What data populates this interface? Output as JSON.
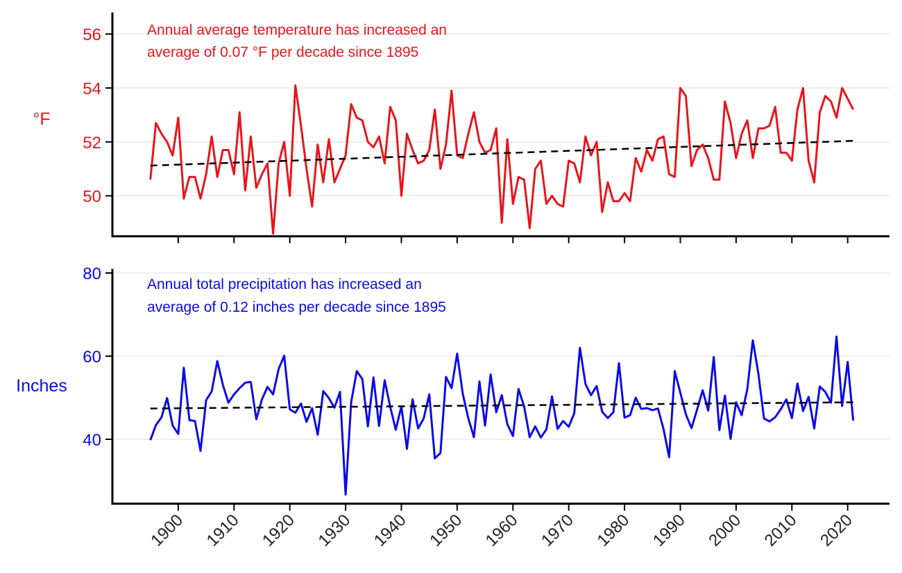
{
  "chart_data": [
    {
      "type": "line",
      "name": "temperature-panel",
      "ylabel": "°F",
      "annotation": [
        "Annual average temperature has increased an",
        "average of 0.07 °F per decade since 1895"
      ],
      "color": "#e8141b",
      "ylim": [
        48.5,
        56.8
      ],
      "yticks": [
        50,
        52,
        54,
        56
      ],
      "grid": true,
      "x": [
        1895,
        1896,
        1897,
        1898,
        1899,
        1900,
        1901,
        1902,
        1903,
        1904,
        1905,
        1906,
        1907,
        1908,
        1909,
        1910,
        1911,
        1912,
        1913,
        1914,
        1915,
        1916,
        1917,
        1918,
        1919,
        1920,
        1921,
        1922,
        1923,
        1924,
        1925,
        1926,
        1927,
        1928,
        1929,
        1930,
        1931,
        1932,
        1933,
        1934,
        1935,
        1936,
        1937,
        1938,
        1939,
        1940,
        1941,
        1942,
        1943,
        1944,
        1945,
        1946,
        1947,
        1948,
        1949,
        1950,
        1951,
        1952,
        1953,
        1954,
        1955,
        1956,
        1957,
        1958,
        1959,
        1960,
        1961,
        1962,
        1963,
        1964,
        1965,
        1966,
        1967,
        1968,
        1969,
        1970,
        1971,
        1972,
        1973,
        1974,
        1975,
        1976,
        1977,
        1978,
        1979,
        1980,
        1981,
        1982,
        1983,
        1984,
        1985,
        1986,
        1987,
        1988,
        1989,
        1990,
        1991,
        1992,
        1993,
        1994,
        1995,
        1996,
        1997,
        1998,
        1999,
        2000,
        2001,
        2002,
        2003,
        2004,
        2005,
        2006,
        2007,
        2008,
        2009,
        2010,
        2011,
        2012,
        2013,
        2014,
        2015,
        2016,
        2017,
        2018,
        2019,
        2020,
        2021
      ],
      "values": [
        50.6,
        52.7,
        52.3,
        52.0,
        51.5,
        52.9,
        49.9,
        50.7,
        50.7,
        49.9,
        50.8,
        52.2,
        50.7,
        51.7,
        51.7,
        50.8,
        53.1,
        50.2,
        52.2,
        50.3,
        50.8,
        51.2,
        48.6,
        51.2,
        52.0,
        50.0,
        54.1,
        52.6,
        51.0,
        49.6,
        51.9,
        50.5,
        52.1,
        50.5,
        51.0,
        51.5,
        53.4,
        52.9,
        52.8,
        52.0,
        51.8,
        52.2,
        51.2,
        53.3,
        52.8,
        50.0,
        52.3,
        51.7,
        51.2,
        51.3,
        51.7,
        53.2,
        51.0,
        51.9,
        53.9,
        51.5,
        51.4,
        52.3,
        53.1,
        52.0,
        51.6,
        51.7,
        52.5,
        49.0,
        52.1,
        49.7,
        50.7,
        50.6,
        48.8,
        51.0,
        51.3,
        49.7,
        50.0,
        49.7,
        49.6,
        51.3,
        51.2,
        50.5,
        52.2,
        51.5,
        52.0,
        49.4,
        50.5,
        49.8,
        49.8,
        50.1,
        49.8,
        51.4,
        50.9,
        51.7,
        51.3,
        52.1,
        52.2,
        50.8,
        50.7,
        54.0,
        53.7,
        51.1,
        51.7,
        51.9,
        51.4,
        50.6,
        50.6,
        53.5,
        52.7,
        51.4,
        52.3,
        52.8,
        51.4,
        52.5,
        52.5,
        52.6,
        53.3,
        51.6,
        51.6,
        51.3,
        53.2,
        54.0,
        51.3,
        50.5,
        53.1,
        53.7,
        53.5,
        52.9,
        54.0,
        53.6,
        53.2
      ],
      "trend": {
        "x": [
          1895,
          2021
        ],
        "y": [
          51.12,
          52.04
        ]
      }
    },
    {
      "type": "line",
      "name": "precipitation-panel",
      "ylabel": "Inches",
      "annotation": [
        "Annual total precipitation has increased an",
        "average of 0.12 inches per decade since 1895"
      ],
      "color": "#0a0ae6",
      "ylim": [
        24.5,
        81
      ],
      "yticks": [
        40,
        60,
        80
      ],
      "grid": true,
      "x": [
        1895,
        1896,
        1897,
        1898,
        1899,
        1900,
        1901,
        1902,
        1903,
        1904,
        1905,
        1906,
        1907,
        1908,
        1909,
        1910,
        1911,
        1912,
        1913,
        1914,
        1915,
        1916,
        1917,
        1918,
        1919,
        1920,
        1921,
        1922,
        1923,
        1924,
        1925,
        1926,
        1927,
        1928,
        1929,
        1930,
        1931,
        1932,
        1933,
        1934,
        1935,
        1936,
        1937,
        1938,
        1939,
        1940,
        1941,
        1942,
        1943,
        1944,
        1945,
        1946,
        1947,
        1948,
        1949,
        1950,
        1951,
        1952,
        1953,
        1954,
        1955,
        1956,
        1957,
        1958,
        1959,
        1960,
        1961,
        1962,
        1963,
        1964,
        1965,
        1966,
        1967,
        1968,
        1969,
        1970,
        1971,
        1972,
        1973,
        1974,
        1975,
        1976,
        1977,
        1978,
        1979,
        1980,
        1981,
        1982,
        1983,
        1984,
        1985,
        1986,
        1987,
        1988,
        1989,
        1990,
        1991,
        1992,
        1993,
        1994,
        1995,
        1996,
        1997,
        1998,
        1999,
        2000,
        2001,
        2002,
        2003,
        2004,
        2005,
        2006,
        2007,
        2008,
        2009,
        2010,
        2011,
        2012,
        2013,
        2014,
        2015,
        2016,
        2017,
        2018,
        2019,
        2020,
        2021
      ],
      "values": [
        39.8,
        43.4,
        45.3,
        49.9,
        43.3,
        41.3,
        57.2,
        44.6,
        44.4,
        37.2,
        49.4,
        51.5,
        58.8,
        53.1,
        48.8,
        50.8,
        52.3,
        53.6,
        53.8,
        44.8,
        49.6,
        52.6,
        50.8,
        56.9,
        60.1,
        47.2,
        46.4,
        48.6,
        44.2,
        47.5,
        41.1,
        51.6,
        49.9,
        47.6,
        51.4,
        26.7,
        48.9,
        56.4,
        54.5,
        43.1,
        54.9,
        43.2,
        54.2,
        47.8,
        42.3,
        47.9,
        37.7,
        49.6,
        42.6,
        45.0,
        50.8,
        35.4,
        36.7,
        55.0,
        52.3,
        60.6,
        51.0,
        45.0,
        40.5,
        53.9,
        43.3,
        55.6,
        46.5,
        50.6,
        43.6,
        40.8,
        52.1,
        47.9,
        40.5,
        43.1,
        40.4,
        42.4,
        50.3,
        42.5,
        44.4,
        43.0,
        46.3,
        62.0,
        53.3,
        50.6,
        52.8,
        46.6,
        45.1,
        46.5,
        58.3,
        45.2,
        45.8,
        50.0,
        47.3,
        47.5,
        47.0,
        47.4,
        42.4,
        35.7,
        56.4,
        51.2,
        46.0,
        42.7,
        47.1,
        51.8,
        46.9,
        59.8,
        42.2,
        50.5,
        40.1,
        48.9,
        45.8,
        52.0,
        63.8,
        55.7,
        45.0,
        44.3,
        45.3,
        47.2,
        49.6,
        45.1,
        53.4,
        46.8,
        50.2,
        42.6,
        52.7,
        51.4,
        48.8,
        64.7,
        48.0,
        58.6,
        44.5
      ],
      "trend": {
        "x": [
          1895,
          2021
        ],
        "y": [
          47.4,
          48.9
        ]
      }
    }
  ],
  "x_axis": {
    "xlim": [
      1888.2,
      2027.5
    ],
    "ticks": [
      1900,
      1910,
      1920,
      1930,
      1940,
      1950,
      1960,
      1970,
      1980,
      1990,
      2000,
      2010,
      2020
    ],
    "tick_labels": [
      "1900",
      "1910",
      "1920",
      "1930",
      "1940",
      "1950",
      "1960",
      "1970",
      "1980",
      "1990",
      "2000",
      "2010",
      "2020"
    ]
  },
  "colors": {
    "temperature": "#e8141b",
    "precipitation": "#0a0ae6",
    "trend": "#000000",
    "grid": "#dedede"
  }
}
